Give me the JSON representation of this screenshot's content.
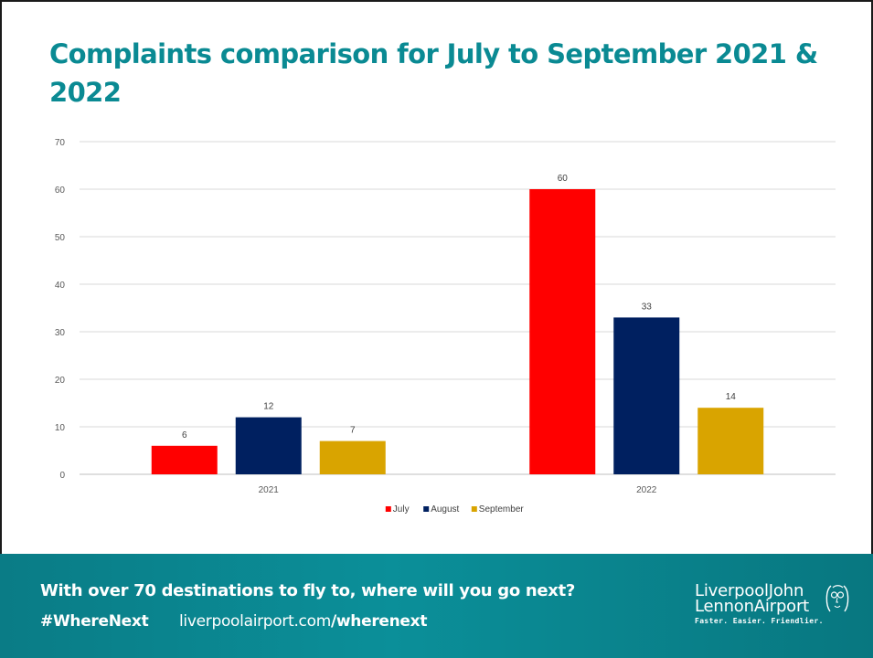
{
  "slide": {
    "title": "Complaints comparison for July to September 2021 & 2022"
  },
  "chart_data": {
    "type": "bar",
    "title": "",
    "xlabel": "",
    "ylabel": "",
    "categories": [
      "2021",
      "2022"
    ],
    "series": [
      {
        "name": "July",
        "values": [
          6,
          60
        ],
        "color": "#ff0000"
      },
      {
        "name": "August",
        "values": [
          12,
          33
        ],
        "color": "#002060"
      },
      {
        "name": "September",
        "values": [
          7,
          14
        ],
        "color": "#d9a400"
      }
    ],
    "ylim": [
      0,
      70
    ],
    "yticks": [
      0,
      10,
      20,
      30,
      40,
      50,
      60,
      70
    ],
    "grid": true,
    "legend": "bottom",
    "data_labels": true
  },
  "footer": {
    "tagline": "With over 70 destinations to fly to, where will you go next?",
    "hashtag": "#WhereNext",
    "url_plain": "liverpoolairport.com",
    "url_bold": "/wherenext",
    "logo_line1": "LiverpoolJohn",
    "logo_line2": "LennonAirport",
    "logo_tagline": "Faster. Easier. Friendlier.",
    "logo_icon": "john-lennon-portrait-icon"
  }
}
